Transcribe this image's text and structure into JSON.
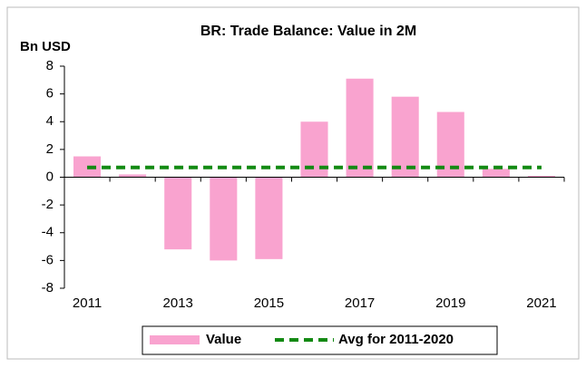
{
  "chart_data": {
    "type": "bar",
    "title": "BR: Trade Balance: Value in 2M",
    "y_label": "Bn USD",
    "categories": [
      "2011",
      null,
      "2013",
      null,
      "2015",
      null,
      "2017",
      null,
      "2019",
      null,
      "2021"
    ],
    "series": [
      {
        "name": "Value",
        "type": "bar",
        "color": "#f9a3cf",
        "values": [
          1.5,
          0.2,
          -5.2,
          -6.0,
          -5.9,
          4.0,
          7.1,
          5.8,
          4.7,
          0.6,
          0.1
        ]
      },
      {
        "name": "Avg for 2011-2020",
        "type": "line",
        "color": "#138a13",
        "values": [
          0.7,
          0.7,
          0.7,
          0.7,
          0.7,
          0.7,
          0.7,
          0.7,
          0.7,
          0.7,
          0.7
        ]
      }
    ],
    "ylim": [
      -8,
      8
    ],
    "yticks": [
      -8,
      -6,
      -4,
      -2,
      0,
      2,
      4,
      6,
      8
    ],
    "legend": "bottom"
  }
}
